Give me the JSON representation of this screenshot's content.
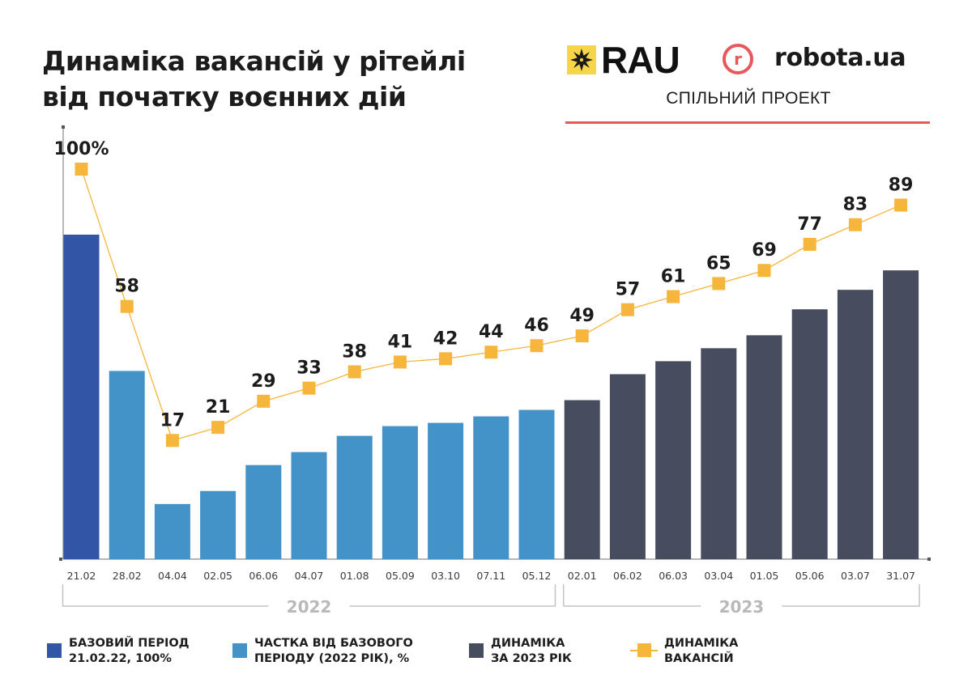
{
  "header": {
    "title_line1": "Динаміка вакансій у рітейлі",
    "title_line2": "від початку воєнних дій",
    "logo_rau": "RAU",
    "logo_robota": "robota.ua",
    "subtitle": "СПІЛЬНИЙ ПРОЕКТ"
  },
  "colors": {
    "base": "#3355a6",
    "share2022": "#4392c8",
    "dyn2023": "#474d5e",
    "line": "#f6b53b",
    "accent_red": "#e8585a",
    "rau_yellow": "#f7d54a"
  },
  "chart_data": {
    "type": "bar",
    "title": "Динаміка вакансій у рітейлі від початку воєнних дій",
    "xlabel": "",
    "ylabel": "",
    "ylim": [
      0,
      100
    ],
    "grid": false,
    "categories": [
      "21.02",
      "28.02",
      "04.04",
      "02.05",
      "06.06",
      "04.07",
      "01.08",
      "05.09",
      "03.10",
      "07.11",
      "05.12",
      "02.01",
      "06.02",
      "06.03",
      "03.04",
      "01.05",
      "05.06",
      "03.07",
      "31.07"
    ],
    "bar_groups": [
      "base",
      "share2022",
      "share2022",
      "share2022",
      "share2022",
      "share2022",
      "share2022",
      "share2022",
      "share2022",
      "share2022",
      "share2022",
      "dyn2023",
      "dyn2023",
      "dyn2023",
      "dyn2023",
      "dyn2023",
      "dyn2023",
      "dyn2023",
      "dyn2023"
    ],
    "series": [
      {
        "name": "Динаміка вакансій (bars)",
        "type": "bar",
        "values": [
          100,
          58,
          17,
          21,
          29,
          33,
          38,
          41,
          42,
          44,
          46,
          49,
          57,
          61,
          65,
          69,
          77,
          83,
          89
        ]
      },
      {
        "name": "Динаміка вакансій",
        "type": "line",
        "values": [
          100,
          58,
          17,
          21,
          29,
          33,
          38,
          41,
          42,
          44,
          46,
          49,
          57,
          61,
          65,
          69,
          77,
          83,
          89
        ]
      }
    ],
    "data_labels": [
      "100%",
      "58",
      "17",
      "21",
      "29",
      "33",
      "38",
      "41",
      "42",
      "44",
      "46",
      "49",
      "57",
      "61",
      "65",
      "69",
      "77",
      "83",
      "89"
    ],
    "year_groups": [
      {
        "label": "2022",
        "from": 0,
        "to": 10
      },
      {
        "label": "2023",
        "from": 11,
        "to": 18
      }
    ],
    "legend": {
      "placement": "bottom",
      "items": [
        {
          "key": "base",
          "label": "БАЗОВИЙ ПЕРІОД\n21.02.22, 100%"
        },
        {
          "key": "share2022",
          "label": "ЧАСТКА ВІД БАЗОВОГО\nПЕРІОДУ (2022 РІК), %"
        },
        {
          "key": "dyn2023",
          "label": "ДИНАМІКА\nЗА 2023 РІК"
        },
        {
          "key": "line",
          "label": "ДИНАМІКА\nВАКАНСІЙ"
        }
      ]
    }
  }
}
